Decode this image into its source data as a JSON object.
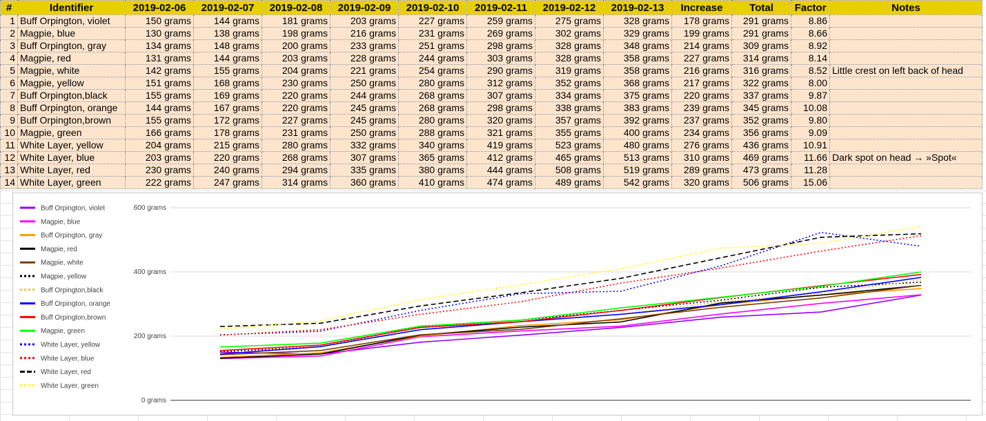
{
  "table": {
    "headers": [
      "#",
      "Identifier",
      "2019-02-06",
      "2019-02-07",
      "2019-02-08",
      "2019-02-09",
      "2019-02-10",
      "2019-02-11",
      "2019-02-12",
      "2019-02-13",
      "Increase",
      "Total",
      "Factor",
      "Notes"
    ],
    "rows": [
      [
        "1",
        "Buff Orpington, violet",
        "150 grams",
        "144 grams",
        "181 grams",
        "203 grams",
        "227 grams",
        "259 grams",
        "275 grams",
        "328 grams",
        "178 grams",
        "291 grams",
        "8.86",
        ""
      ],
      [
        "2",
        "Magpie, blue",
        "130 grams",
        "138 grams",
        "198 grams",
        "216 grams",
        "231 grams",
        "269 grams",
        "302 grams",
        "329 grams",
        "199 grams",
        "291 grams",
        "8.66",
        ""
      ],
      [
        "3",
        "Buff Orpington, gray",
        "134 grams",
        "148 grams",
        "200 grams",
        "233 grams",
        "251 grams",
        "298 grams",
        "328 grams",
        "348 grams",
        "214 grams",
        "309 grams",
        "8.92",
        ""
      ],
      [
        "4",
        "Magpie, red",
        "131 grams",
        "144 grams",
        "203 grams",
        "228 grams",
        "244 grams",
        "303 grams",
        "328 grams",
        "358 grams",
        "227 grams",
        "314 grams",
        "8.14",
        ""
      ],
      [
        "5",
        "Magpie, white",
        "142 grams",
        "155 grams",
        "204 grams",
        "221 grams",
        "254 grams",
        "290 grams",
        "319 grams",
        "358 grams",
        "216 grams",
        "316 grams",
        "8.52",
        "Little crest on left back of head"
      ],
      [
        "6",
        "Magpie, yellow",
        "151 grams",
        "168 grams",
        "230 grams",
        "250 grams",
        "280 grams",
        "312 grams",
        "352 grams",
        "368 grams",
        "217 grams",
        "322 grams",
        "8.00",
        ""
      ],
      [
        "7",
        "Buff Orpington,black",
        "155 grams",
        "169 grams",
        "220 grams",
        "244 grams",
        "268 grams",
        "307 grams",
        "334 grams",
        "375 grams",
        "220 grams",
        "337 grams",
        "9.87",
        ""
      ],
      [
        "8",
        "Buff Orpington, orange",
        "144 grams",
        "167 grams",
        "220 grams",
        "245 grams",
        "268 grams",
        "298 grams",
        "338 grams",
        "383 grams",
        "239 grams",
        "345 grams",
        "10.08",
        ""
      ],
      [
        "9",
        "Buff Orpington,brown",
        "155 grams",
        "172 grams",
        "227 grams",
        "245 grams",
        "280 grams",
        "320 grams",
        "357 grams",
        "392 grams",
        "237 grams",
        "352 grams",
        "9.80",
        ""
      ],
      [
        "10",
        "Magpie, green",
        "166 grams",
        "178 grams",
        "231 grams",
        "250 grams",
        "288 grams",
        "321 grams",
        "355 grams",
        "400 grams",
        "234 grams",
        "356 grams",
        "9.09",
        ""
      ],
      [
        "11",
        "White Layer, yellow",
        "204 grams",
        "215 grams",
        "280 grams",
        "332 grams",
        "340 grams",
        "419 grams",
        "523 grams",
        "480 grams",
        "276 grams",
        "436 grams",
        "10.91",
        ""
      ],
      [
        "12",
        "White Layer, blue",
        "203 grams",
        "220 grams",
        "268 grams",
        "307 grams",
        "365 grams",
        "412 grams",
        "465 grams",
        "513 grams",
        "310 grams",
        "469 grams",
        "11.66",
        "Dark spot on head → »Spot«"
      ],
      [
        "13",
        "White Layer, red",
        "230 grams",
        "240 grams",
        "294 grams",
        "335 grams",
        "380 grams",
        "444 grams",
        "508 grams",
        "519 grams",
        "289 grams",
        "473 grams",
        "11.28",
        ""
      ],
      [
        "14",
        "White Layer, green",
        "222 grams",
        "247 grams",
        "314 grams",
        "360 grams",
        "410 grams",
        "474 grams",
        "489 grams",
        "542 grams",
        "320 grams",
        "506 grams",
        "15.06",
        ""
      ]
    ]
  },
  "chart_data": {
    "type": "line",
    "x": [
      "2019-02-06",
      "2019-02-07",
      "2019-02-08",
      "2019-02-09",
      "2019-02-10",
      "2019-02-11",
      "2019-02-12",
      "2019-02-13"
    ],
    "ylim": [
      0,
      600
    ],
    "yticks": [
      "0 grams",
      "200 grams",
      "400 grams",
      "600 grams"
    ],
    "grid": true,
    "legend_position": "left",
    "series": [
      {
        "name": "Buff Orpington, violet",
        "color": "#9900ff",
        "dash": "solid",
        "values": [
          150,
          144,
          181,
          203,
          227,
          259,
          275,
          328
        ]
      },
      {
        "name": "Magpie, blue",
        "color": "#ff00ff",
        "dash": "solid",
        "values": [
          130,
          138,
          198,
          216,
          231,
          269,
          302,
          329
        ]
      },
      {
        "name": "Buff Orpington, gray",
        "color": "#ff9900",
        "dash": "solid",
        "values": [
          134,
          148,
          200,
          233,
          251,
          298,
          328,
          348
        ]
      },
      {
        "name": "Magpie, red",
        "color": "#000000",
        "dash": "solid",
        "values": [
          131,
          144,
          203,
          228,
          244,
          303,
          328,
          358
        ]
      },
      {
        "name": "Magpie, white",
        "color": "#783f04",
        "dash": "solid",
        "values": [
          142,
          155,
          204,
          221,
          254,
          290,
          319,
          358
        ]
      },
      {
        "name": "Magpie, yellow",
        "color": "#000000",
        "dash": "dotted",
        "values": [
          151,
          168,
          230,
          250,
          280,
          312,
          352,
          368
        ]
      },
      {
        "name": "Buff Orpington,black",
        "color": "#f1c232",
        "dash": "dotted",
        "values": [
          155,
          169,
          220,
          244,
          268,
          307,
          334,
          375
        ]
      },
      {
        "name": "Buff Orpington, orange",
        "color": "#0000ff",
        "dash": "solid",
        "values": [
          144,
          167,
          220,
          245,
          268,
          298,
          338,
          383
        ]
      },
      {
        "name": "Buff Orpington,brown",
        "color": "#ff0000",
        "dash": "solid",
        "values": [
          155,
          172,
          227,
          245,
          280,
          320,
          357,
          392
        ]
      },
      {
        "name": "Magpie, green",
        "color": "#00ff00",
        "dash": "solid",
        "values": [
          166,
          178,
          231,
          250,
          288,
          321,
          355,
          400
        ]
      },
      {
        "name": "White Layer, yellow",
        "color": "#0000ff",
        "dash": "dotted",
        "values": [
          204,
          215,
          280,
          332,
          340,
          419,
          523,
          480
        ]
      },
      {
        "name": "White Layer, blue",
        "color": "#ff0000",
        "dash": "dotted",
        "values": [
          203,
          220,
          268,
          307,
          365,
          412,
          465,
          513
        ]
      },
      {
        "name": "White Layer, red",
        "color": "#000000",
        "dash": "dashed",
        "values": [
          230,
          240,
          294,
          335,
          380,
          444,
          508,
          519
        ]
      },
      {
        "name": "White Layer, green",
        "color": "#ffff00",
        "dash": "dotted",
        "values": [
          222,
          247,
          314,
          360,
          410,
          474,
          489,
          542
        ]
      }
    ]
  }
}
